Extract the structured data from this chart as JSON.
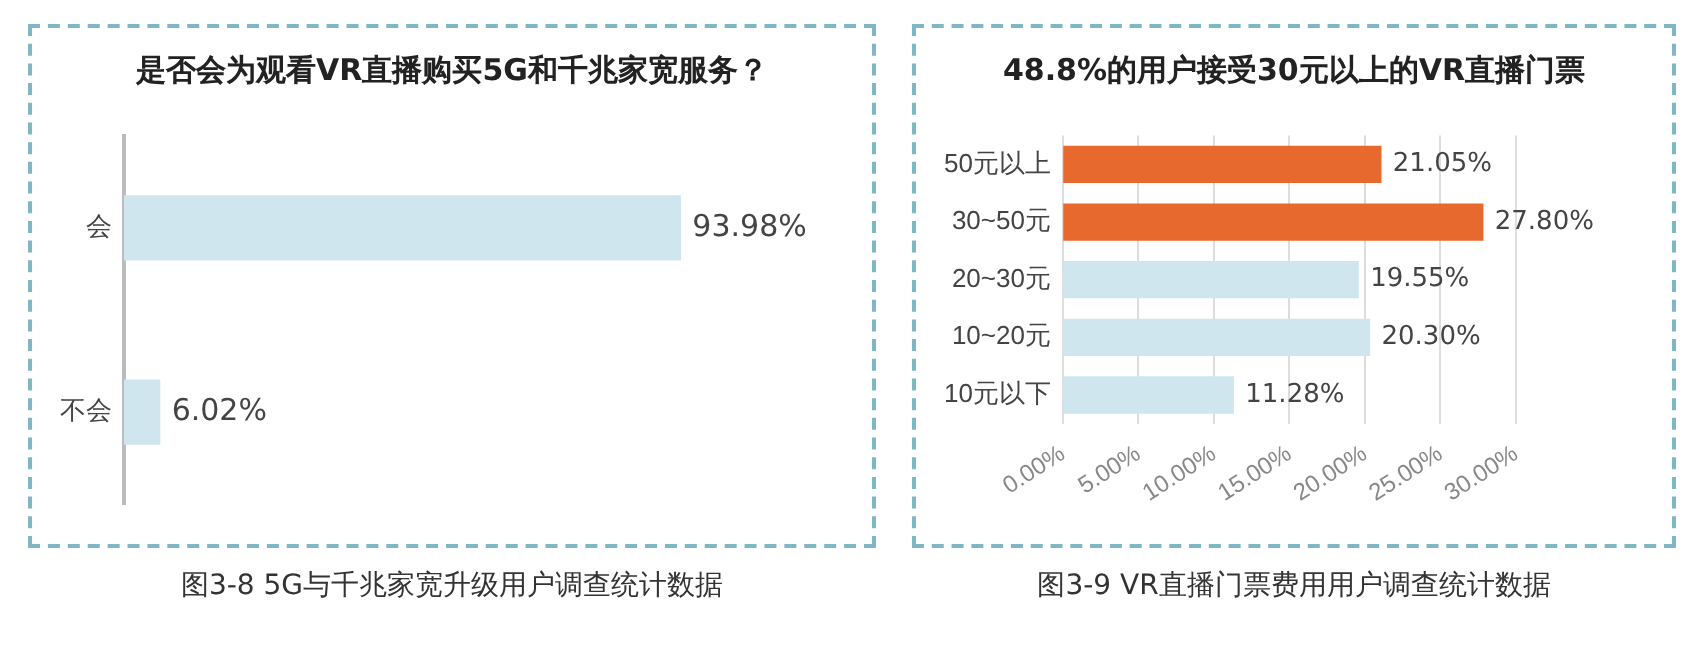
{
  "chart_data": [
    {
      "type": "bar",
      "orientation": "horizontal",
      "title": "是否会为观看VR直播购买5G和千兆家宽服务？",
      "categories": [
        "会",
        "不会"
      ],
      "values": [
        93.98,
        6.02
      ],
      "color": "#cfe6ee",
      "value_labels": [
        "93.98%",
        "6.02%"
      ],
      "grid": false,
      "legend": false,
      "tick_labels": "y",
      "annotations": [
        "图3-8 5G与千兆家宽升级用户调查统计数据"
      ]
    },
    {
      "type": "bar",
      "orientation": "horizontal",
      "title": "48.8%的用户接受30元以上的VR直播门票",
      "categories": [
        "50元以上",
        "30~50元",
        "20~30元",
        "10~20元",
        "10元以下"
      ],
      "values": [
        21.05,
        27.8,
        19.55,
        20.3,
        11.28
      ],
      "colors": [
        "#e8692e",
        "#e8692e",
        "#cfe6ee",
        "#cfe6ee",
        "#cfe6ee"
      ],
      "value_labels": [
        "21.05%",
        "27.80%",
        "19.55%",
        "20.30%",
        "11.28%"
      ],
      "xlim": [
        0,
        30
      ],
      "xticks": [
        {
          "value": 0,
          "label": "0.00%"
        },
        {
          "value": 5,
          "label": "5.00%"
        },
        {
          "value": 10,
          "label": "10.00%"
        },
        {
          "value": 15,
          "label": "15.00%"
        },
        {
          "value": 20,
          "label": "20.00%"
        },
        {
          "value": 25,
          "label": "25.00%"
        },
        {
          "value": 30,
          "label": "30.00%"
        }
      ],
      "grid": "x",
      "legend": false,
      "annotations": [
        "图3-9 VR直播门票费用用户调查统计数据"
      ]
    }
  ]
}
